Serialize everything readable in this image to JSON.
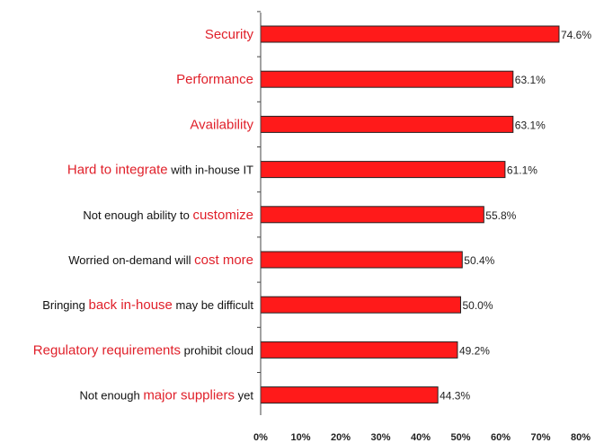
{
  "chart_data": {
    "type": "bar",
    "orientation": "horizontal",
    "bar_color": "#ff1a1a",
    "highlight_color": "#e0202a",
    "xlim": [
      0,
      80
    ],
    "grid": false,
    "x_ticks": [
      "0%",
      "10%",
      "20%",
      "30%",
      "40%",
      "50%",
      "60%",
      "70%",
      "80%"
    ],
    "categories": [
      {
        "parts": [
          {
            "text": "Security",
            "hl": true
          }
        ]
      },
      {
        "parts": [
          {
            "text": "Performance",
            "hl": true
          }
        ]
      },
      {
        "parts": [
          {
            "text": "Availability",
            "hl": true
          }
        ]
      },
      {
        "parts": [
          {
            "text": "Hard to integrate",
            "hl": true
          },
          {
            "text": " with in-house IT",
            "hl": false
          }
        ]
      },
      {
        "parts": [
          {
            "text": "Not enough ability to ",
            "hl": false
          },
          {
            "text": "customize",
            "hl": true
          }
        ]
      },
      {
        "parts": [
          {
            "text": "Worried on-demand will ",
            "hl": false
          },
          {
            "text": "cost more",
            "hl": true
          }
        ]
      },
      {
        "parts": [
          {
            "text": "Bringing ",
            "hl": false
          },
          {
            "text": "back in-house",
            "hl": true
          },
          {
            "text": " may be difficult",
            "hl": false
          }
        ]
      },
      {
        "parts": [
          {
            "text": "Regulatory requirements",
            "hl": true
          },
          {
            "text": " prohibit cloud",
            "hl": false
          }
        ]
      },
      {
        "parts": [
          {
            "text": "Not enough ",
            "hl": false
          },
          {
            "text": "major suppliers",
            "hl": true
          },
          {
            "text": " yet",
            "hl": false
          }
        ]
      }
    ],
    "values": [
      74.6,
      63.1,
      63.1,
      61.1,
      55.8,
      50.4,
      50.0,
      49.2,
      44.3
    ],
    "value_labels": [
      "74.6%",
      "63.1%",
      "63.1%",
      "61.1%",
      "55.8%",
      "50.4%",
      "50.0%",
      "49.2%",
      "44.3%"
    ]
  }
}
